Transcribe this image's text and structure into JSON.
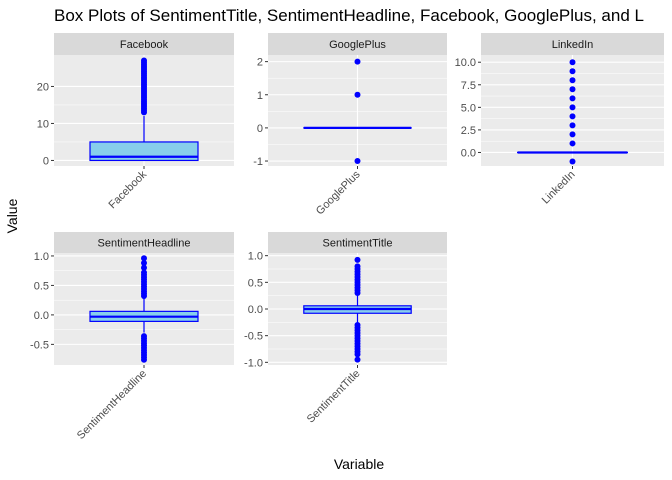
{
  "chart_data": {
    "type": "box",
    "title": "Box Plots of SentimentTitle, SentimentHeadline, Facebook, GooglePlus, and L",
    "xlabel": "Variable",
    "ylabel": "Value",
    "facet_scales": "free",
    "colors": {
      "box_fill": "#87CEEB",
      "box_stroke": "#0000FF",
      "outlier": "#0000FF",
      "panel_bg": "#EBEBEB",
      "strip_bg": "#D9D9D9",
      "grid": "#FFFFFF"
    },
    "panels": [
      {
        "name": "Facebook",
        "category": "Facebook",
        "ylim": [
          -1.5,
          28.5
        ],
        "yticks": [
          0,
          10,
          20
        ],
        "tick_labels": [
          "0",
          "10",
          "20"
        ],
        "box": {
          "whisker_low": 0,
          "q1": 0,
          "median": 1,
          "q3": 5,
          "whisker_high": 12
        },
        "outliers": [
          13,
          13.5,
          14,
          14.5,
          15,
          15.5,
          16,
          16.5,
          17,
          17.5,
          18,
          18.5,
          19,
          19.5,
          20,
          20.5,
          21,
          21.5,
          22,
          22.5,
          23,
          23.5,
          24,
          24.5,
          25,
          25.5,
          26,
          26.5,
          27
        ]
      },
      {
        "name": "GooglePlus",
        "category": "GooglePlus",
        "ylim": [
          -1.15,
          2.2
        ],
        "yticks": [
          -1,
          0,
          1,
          2
        ],
        "tick_labels": [
          "-1",
          "0",
          "1",
          "2"
        ],
        "box": {
          "whisker_low": 0,
          "q1": 0,
          "median": 0,
          "q3": 0,
          "whisker_high": 0
        },
        "outliers": [
          -1,
          1,
          2
        ]
      },
      {
        "name": "LinkedIn",
        "category": "LinkedIn",
        "ylim": [
          -1.5,
          10.8
        ],
        "yticks": [
          0,
          2.5,
          5,
          7.5,
          10
        ],
        "tick_labels": [
          "0.0",
          "2.5",
          "5.0",
          "7.5",
          "10.0"
        ],
        "box": {
          "whisker_low": 0,
          "q1": 0,
          "median": 0,
          "q3": 0,
          "whisker_high": 0
        },
        "outliers": [
          -1,
          1,
          2,
          3,
          4,
          5,
          6,
          7,
          8,
          9,
          10
        ]
      },
      {
        "name": "SentimentHeadline",
        "category": "SentimentHeadline",
        "ylim": [
          -0.85,
          1.05
        ],
        "yticks": [
          -0.5,
          0,
          0.5,
          1
        ],
        "tick_labels": [
          "-0.5",
          "0.0",
          "0.5",
          "1.0"
        ],
        "box": {
          "whisker_low": -0.3,
          "q1": -0.11,
          "median": -0.03,
          "q3": 0.06,
          "whisker_high": 0.3
        },
        "outliers": [
          -0.76,
          -0.72,
          -0.68,
          -0.64,
          -0.6,
          -0.56,
          -0.52,
          -0.48,
          -0.44,
          -0.4,
          -0.36,
          0.32,
          0.36,
          0.4,
          0.44,
          0.48,
          0.52,
          0.56,
          0.6,
          0.64,
          0.68,
          0.72,
          0.8,
          0.88,
          0.96
        ]
      },
      {
        "name": "SentimentTitle",
        "category": "SentimentTitle",
        "ylim": [
          -1.05,
          1.05
        ],
        "yticks": [
          -1,
          -0.5,
          0,
          0.5,
          1
        ],
        "tick_labels": [
          "-1.0",
          "-0.5",
          "0.0",
          "0.5",
          "1.0"
        ],
        "box": {
          "whisker_low": -0.25,
          "q1": -0.08,
          "median": 0,
          "q3": 0.06,
          "whisker_high": 0.25
        },
        "outliers": [
          -0.95,
          -0.85,
          -0.8,
          -0.75,
          -0.7,
          -0.65,
          -0.6,
          -0.55,
          -0.5,
          -0.45,
          -0.4,
          -0.35,
          -0.3,
          0.3,
          0.35,
          0.4,
          0.45,
          0.5,
          0.55,
          0.6,
          0.65,
          0.7,
          0.75,
          0.8,
          0.92
        ]
      }
    ]
  }
}
